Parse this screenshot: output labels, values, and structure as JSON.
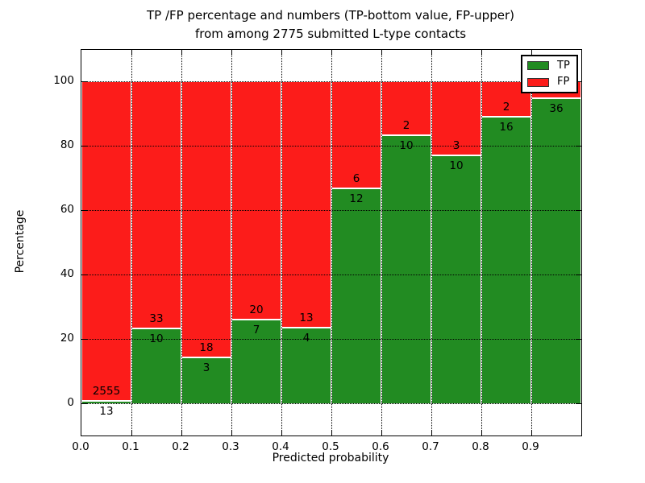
{
  "title_line1": "TP /FP percentage and numbers (TP-bottom value, FP-upper)",
  "title_line2": "from among 2775 submitted L-type contacts",
  "colors": {
    "tp_green": "#228b22",
    "fp_red": "#fc1c1a",
    "grid": "#000000",
    "background": "#ffffff"
  },
  "chart_data": {
    "type": "bar",
    "subtype": "stacked-percentage-histogram",
    "title": "TP /FP percentage and numbers (TP-bottom value, FP-upper) from among 2775 submitted L-type contacts",
    "xlabel": "Predicted probability",
    "ylabel": "Percentage",
    "total_submitted_contacts": 2775,
    "xlim": [
      0.0,
      1.0
    ],
    "ylim": [
      -10,
      110
    ],
    "grid": "dotted",
    "legend": {
      "position": "upper right",
      "entries": [
        {
          "label": "TP",
          "color": "#228b22"
        },
        {
          "label": "FP",
          "color": "#fc1c1a"
        }
      ]
    },
    "ytick_values": [
      0,
      20,
      40,
      60,
      80,
      100
    ],
    "ytick_labels": [
      "0",
      "20",
      "40",
      "60",
      "80",
      "100"
    ],
    "xtick_values": [
      0.0,
      0.1,
      0.2,
      0.3,
      0.4,
      0.5,
      0.6,
      0.7,
      0.8,
      0.9
    ],
    "xtick_labels": [
      "0.0",
      "0.1",
      "0.2",
      "0.3",
      "0.4",
      "0.5",
      "0.6",
      "0.7",
      "0.8",
      "0.9"
    ],
    "series": [
      {
        "name": "TP",
        "counts": [
          13,
          10,
          3,
          7,
          4,
          12,
          10,
          10,
          16,
          36
        ]
      },
      {
        "name": "FP",
        "counts": [
          2555,
          33,
          18,
          20,
          13,
          6,
          2,
          3,
          2,
          null
        ]
      }
    ],
    "bins": [
      {
        "range": [
          0.0,
          0.1
        ],
        "tp": 13,
        "fp": 2555,
        "tp_pct": 0.51,
        "tp_label": "13",
        "fp_label": "2555"
      },
      {
        "range": [
          0.1,
          0.2
        ],
        "tp": 10,
        "fp": 33,
        "tp_pct": 23.26,
        "tp_label": "10",
        "fp_label": "33"
      },
      {
        "range": [
          0.2,
          0.3
        ],
        "tp": 3,
        "fp": 18,
        "tp_pct": 14.29,
        "tp_label": "3",
        "fp_label": "18"
      },
      {
        "range": [
          0.3,
          0.4
        ],
        "tp": 7,
        "fp": 20,
        "tp_pct": 25.93,
        "tp_label": "7",
        "fp_label": "20"
      },
      {
        "range": [
          0.4,
          0.5
        ],
        "tp": 4,
        "fp": 13,
        "tp_pct": 23.53,
        "tp_label": "4",
        "fp_label": "13"
      },
      {
        "range": [
          0.5,
          0.6
        ],
        "tp": 12,
        "fp": 6,
        "tp_pct": 66.67,
        "tp_label": "12",
        "fp_label": "6"
      },
      {
        "range": [
          0.6,
          0.7
        ],
        "tp": 10,
        "fp": 2,
        "tp_pct": 83.33,
        "tp_label": "10",
        "fp_label": "2"
      },
      {
        "range": [
          0.7,
          0.8
        ],
        "tp": 10,
        "fp": 3,
        "tp_pct": 76.92,
        "tp_label": "10",
        "fp_label": "3"
      },
      {
        "range": [
          0.8,
          0.9
        ],
        "tp": 16,
        "fp": 2,
        "tp_pct": 88.89,
        "tp_label": "16",
        "fp_label": "2"
      },
      {
        "range": [
          0.9,
          1.0
        ],
        "tp": 36,
        "fp": null,
        "tp_pct": 94.74,
        "tp_label": "36",
        "fp_label": ""
      }
    ]
  }
}
